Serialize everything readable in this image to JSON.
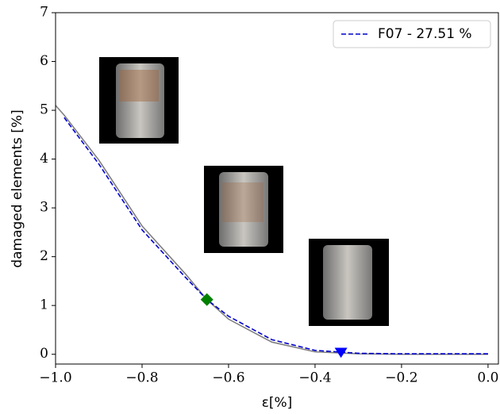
{
  "chart_data": {
    "type": "line",
    "x_label": "ε[%]",
    "y_label": "damaged elements [%]",
    "x": [
      -1.0,
      -0.98,
      -0.9,
      -0.8,
      -0.7,
      -0.65,
      -0.6,
      -0.5,
      -0.4,
      -0.3,
      -0.2,
      -0.1,
      0.0
    ],
    "series": [
      {
        "color": "#808080",
        "dash": false,
        "values": [
          5.1,
          4.9,
          3.98,
          2.63,
          1.65,
          1.12,
          0.72,
          0.25,
          0.05,
          0.01,
          0,
          0,
          0
        ]
      },
      {
        "name": "F07 - 27.51 %",
        "color": "#0000cc",
        "dash": true,
        "values": [
          null,
          4.85,
          3.9,
          2.55,
          1.58,
          1.12,
          0.78,
          0.3,
          0.08,
          0.02,
          0.01,
          0.01,
          0.01
        ]
      }
    ],
    "markers": [
      {
        "x": -0.65,
        "y": 1.12,
        "color": "#008000",
        "shape": "diamond"
      },
      {
        "x": -0.34,
        "y": 0.03,
        "color": "#0000ff",
        "shape": "triangle"
      }
    ],
    "xlim": [
      -1.0,
      0.024
    ],
    "ylim": [
      -0.2,
      7
    ],
    "xticks": [
      {
        "value": -1.0,
        "label": "−1.0"
      },
      {
        "value": -0.8,
        "label": "−0.8"
      },
      {
        "value": -0.6,
        "label": "−0.6"
      },
      {
        "value": -0.4,
        "label": "−0.4"
      },
      {
        "value": -0.2,
        "label": "−0.2"
      },
      {
        "value": 0.0,
        "label": "0.0"
      }
    ],
    "yticks": [
      0,
      1,
      2,
      3,
      4,
      5,
      6,
      7
    ],
    "legend": "upper right"
  }
}
